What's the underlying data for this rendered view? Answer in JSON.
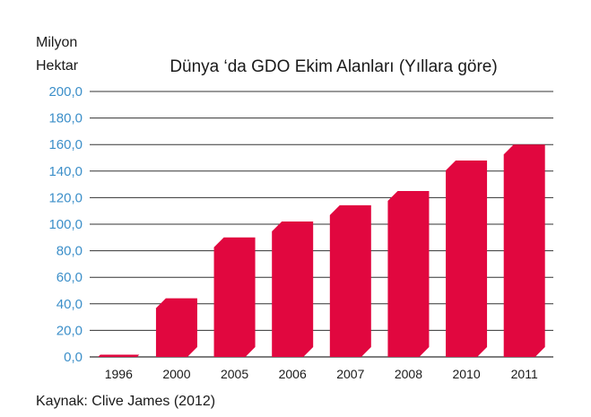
{
  "chart_data": {
    "type": "bar",
    "title": "Dünya ‘da GDO Ekim Alanları (Yıllara göre)",
    "ylabel_lines": [
      "Milyon",
      "Hektar"
    ],
    "xlabel": "",
    "categories": [
      "1996",
      "2000",
      "2005",
      "2006",
      "2007",
      "2008",
      "2010",
      "2011"
    ],
    "values": [
      1.7,
      44.2,
      90.0,
      102.0,
      114.3,
      125.0,
      148.0,
      160.0
    ],
    "ylim": [
      0,
      200
    ],
    "yticks": [
      "0,0",
      "20,0",
      "40,0",
      "60,0",
      "80,0",
      "100,0",
      "120,0",
      "140,0",
      "160,0",
      "180,0",
      "200,0"
    ],
    "grid": true,
    "legend": "none",
    "bar_color": "#e1073f",
    "bar_shade_color": "#b00530",
    "tick_label_color": "#3c8fc9",
    "source": "Kaynak: Clive James (2012)"
  }
}
